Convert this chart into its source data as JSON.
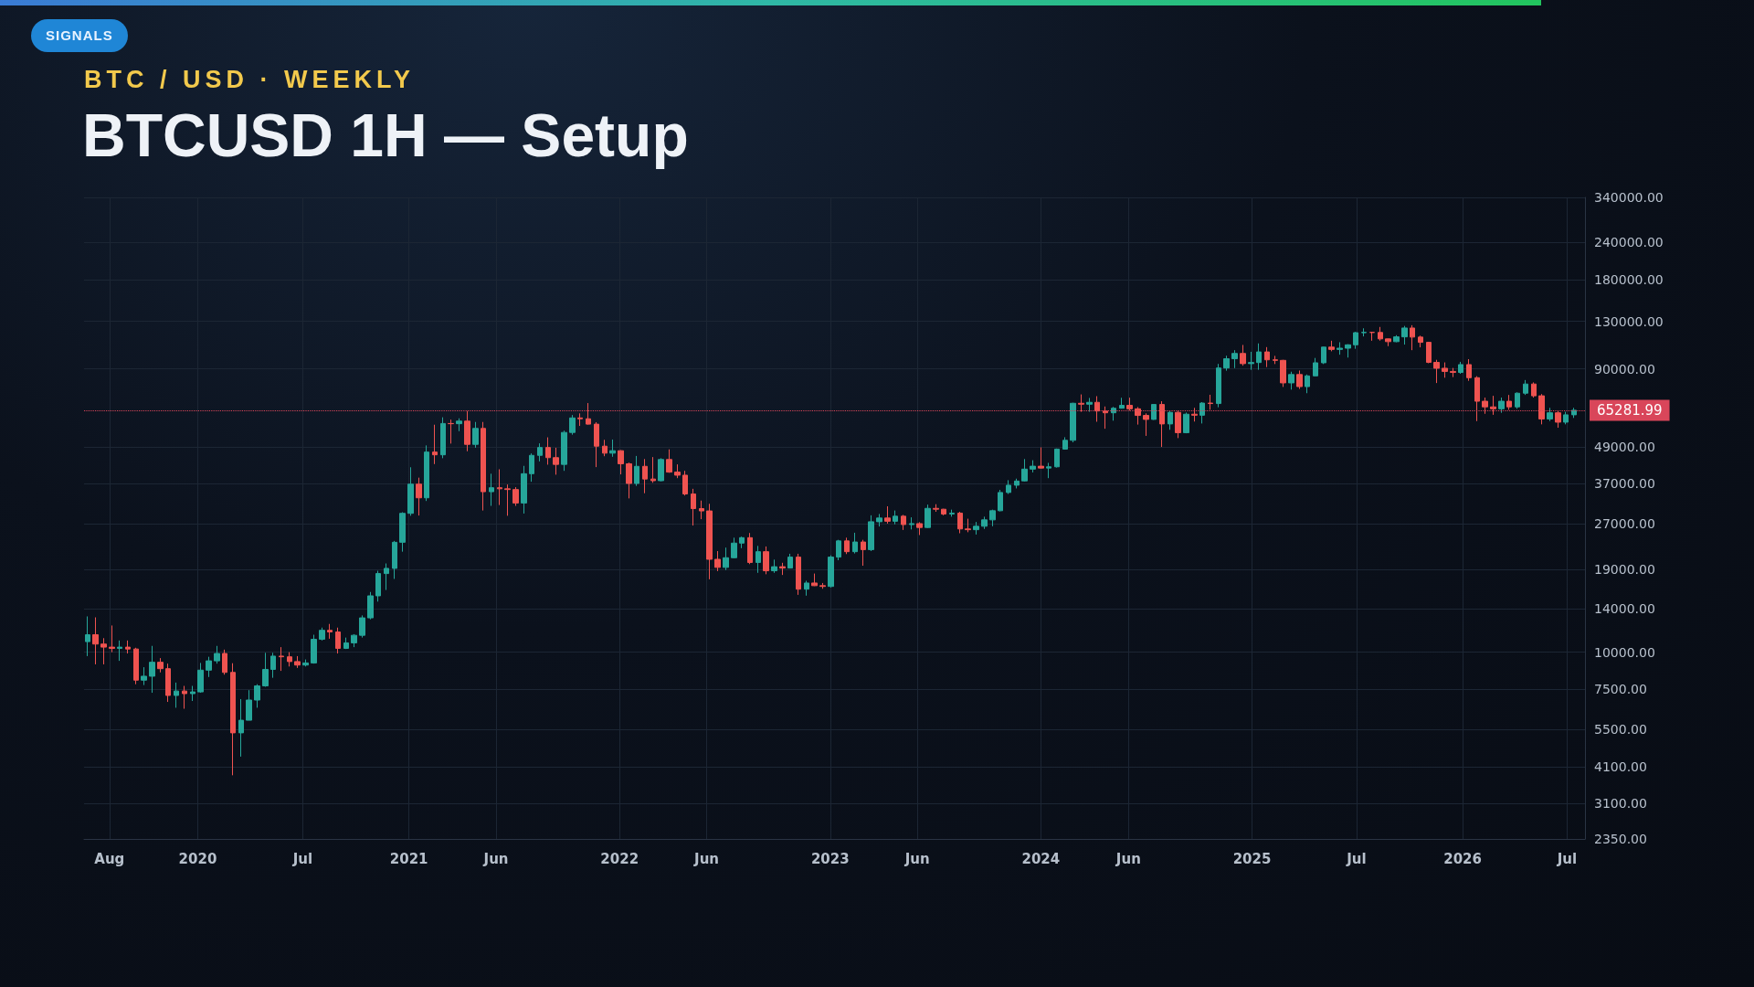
{
  "chart_data": {
    "type": "candlestick",
    "title": "BTCUSD 1H — Setup",
    "subtitle": "BTC / USD · WEEKLY",
    "annotations": [
      "SIGNALS"
    ],
    "x": [
      "2019-06-24",
      "2019-07-08",
      "2019-07-22",
      "2019-08-05",
      "2019-08-19",
      "2019-09-02",
      "2019-09-16",
      "2019-09-30",
      "2019-10-14",
      "2019-10-28",
      "2019-11-11",
      "2019-11-25",
      "2019-12-09",
      "2019-12-23",
      "2020-01-06",
      "2020-01-20",
      "2020-02-03",
      "2020-02-17",
      "2020-03-02",
      "2020-03-16",
      "2020-03-30",
      "2020-04-13",
      "2020-04-27",
      "2020-05-11",
      "2020-05-25",
      "2020-06-08",
      "2020-06-22",
      "2020-07-06",
      "2020-07-20",
      "2020-08-03",
      "2020-08-17",
      "2020-08-31",
      "2020-09-14",
      "2020-09-28",
      "2020-10-12",
      "2020-10-26",
      "2020-11-09",
      "2020-11-23",
      "2020-12-07",
      "2020-12-21",
      "2021-01-04",
      "2021-01-18",
      "2021-02-01",
      "2021-02-15",
      "2021-03-01",
      "2021-03-15",
      "2021-03-29",
      "2021-04-12",
      "2021-04-26",
      "2021-05-10",
      "2021-05-24",
      "2021-06-07",
      "2021-06-21",
      "2021-07-05",
      "2021-07-19",
      "2021-08-02",
      "2021-08-16",
      "2021-08-30",
      "2021-09-13",
      "2021-09-27",
      "2021-10-11",
      "2021-10-25",
      "2021-11-08",
      "2021-11-22",
      "2021-12-06",
      "2021-12-20",
      "2022-01-03",
      "2022-01-17",
      "2022-01-31",
      "2022-02-14",
      "2022-02-28",
      "2022-03-14",
      "2022-03-28",
      "2022-04-11",
      "2022-04-25",
      "2022-05-09",
      "2022-05-23",
      "2022-06-06",
      "2022-06-20",
      "2022-07-04",
      "2022-07-18",
      "2022-08-01",
      "2022-08-15",
      "2022-08-29",
      "2022-09-12",
      "2022-09-26",
      "2022-10-10",
      "2022-10-24",
      "2022-11-07",
      "2022-11-21",
      "2022-12-05",
      "2022-12-19",
      "2023-01-02",
      "2023-01-16",
      "2023-01-30",
      "2023-02-13",
      "2023-02-27",
      "2023-03-13",
      "2023-03-27",
      "2023-04-10",
      "2023-04-24",
      "2023-05-08",
      "2023-05-22",
      "2023-06-05",
      "2023-06-19",
      "2023-07-03",
      "2023-07-17",
      "2023-07-31",
      "2023-08-14",
      "2023-08-28",
      "2023-09-11",
      "2023-09-25",
      "2023-10-09",
      "2023-10-23",
      "2023-11-06",
      "2023-11-20",
      "2023-12-04",
      "2023-12-18",
      "2024-01-01",
      "2024-01-15",
      "2024-01-29",
      "2024-02-12",
      "2024-02-26",
      "2024-03-11",
      "2024-03-25",
      "2024-04-08",
      "2024-04-22",
      "2024-05-06",
      "2024-05-20",
      "2024-06-03",
      "2024-06-17",
      "2024-07-01",
      "2024-07-15",
      "2024-07-29",
      "2024-08-12",
      "2024-08-26",
      "2024-09-09",
      "2024-09-23",
      "2024-10-07",
      "2024-10-21",
      "2024-11-04",
      "2024-11-18",
      "2024-12-02",
      "2024-12-16",
      "2024-12-30",
      "2025-01-13",
      "2025-01-27",
      "2025-02-10",
      "2025-02-24",
      "2025-03-10",
      "2025-03-24",
      "2025-04-07",
      "2025-04-21",
      "2025-05-05",
      "2025-05-19",
      "2025-06-02",
      "2025-06-16",
      "2025-06-30",
      "2025-07-14",
      "2025-07-28",
      "2025-08-11",
      "2025-08-25",
      "2025-09-08",
      "2025-09-22",
      "2025-10-06",
      "2025-10-20",
      "2025-11-03",
      "2025-11-17",
      "2025-12-01",
      "2025-12-15",
      "2025-12-29",
      "2026-01-12",
      "2026-01-26",
      "2026-02-09",
      "2026-02-23",
      "2026-03-09",
      "2026-03-23",
      "2026-04-06",
      "2026-04-20",
      "2026-05-04",
      "2026-05-18",
      "2026-06-01",
      "2026-06-15",
      "2026-06-29",
      "2026-07-13"
    ],
    "ohlc": [
      [
        10850,
        13200,
        9700,
        11450
      ],
      [
        11450,
        13100,
        9100,
        10650
      ],
      [
        10650,
        11150,
        9100,
        10400
      ],
      [
        10400,
        12300,
        10000,
        10300
      ],
      [
        10300,
        10950,
        9350,
        10400
      ],
      [
        10400,
        10950,
        9900,
        10250
      ],
      [
        10250,
        10350,
        7800,
        8050
      ],
      [
        8050,
        8900,
        7750,
        8300
      ],
      [
        8300,
        10500,
        7300,
        9250
      ],
      [
        9250,
        9550,
        8550,
        8800
      ],
      [
        8800,
        9150,
        6800,
        7150
      ],
      [
        7150,
        7900,
        6500,
        7400
      ],
      [
        7400,
        7700,
        6450,
        7250
      ],
      [
        7250,
        7700,
        6850,
        7350
      ],
      [
        7350,
        9200,
        7300,
        8700
      ],
      [
        8700,
        9650,
        8250,
        9350
      ],
      [
        9350,
        10500,
        9150,
        9900
      ],
      [
        9900,
        10200,
        8400,
        8550
      ],
      [
        8550,
        9180,
        3850,
        5350
      ],
      [
        5350,
        6950,
        4450,
        5900
      ],
      [
        5900,
        7450,
        5900,
        6900
      ],
      [
        6900,
        7800,
        6500,
        7700
      ],
      [
        7700,
        9950,
        7650,
        8750
      ],
      [
        8750,
        9950,
        8200,
        9700
      ],
      [
        9700,
        10400,
        8650,
        9650
      ],
      [
        9650,
        10000,
        8950,
        9300
      ],
      [
        9300,
        9700,
        8850,
        9050
      ],
      [
        9050,
        9450,
        8950,
        9200
      ],
      [
        9200,
        11450,
        9150,
        11050
      ],
      [
        11050,
        12100,
        10950,
        11850
      ],
      [
        11850,
        12450,
        11100,
        11700
      ],
      [
        11700,
        12100,
        9900,
        10300
      ],
      [
        10300,
        11200,
        10250,
        10750
      ],
      [
        10750,
        11500,
        10400,
        11400
      ],
      [
        11400,
        13300,
        11200,
        13050
      ],
      [
        13050,
        15950,
        12900,
        15480
      ],
      [
        15480,
        18800,
        14800,
        18400
      ],
      [
        18400,
        19900,
        16200,
        19150
      ],
      [
        19150,
        23700,
        17650,
        23450
      ],
      [
        23450,
        29600,
        21800,
        29350
      ],
      [
        29350,
        41950,
        28800,
        36800
      ],
      [
        36800,
        38700,
        28850,
        33100
      ],
      [
        33100,
        49700,
        32300,
        47200
      ],
      [
        47200,
        58350,
        43000,
        46200
      ],
      [
        46200,
        61800,
        45000,
        58900
      ],
      [
        58900,
        60700,
        50400,
        58800
      ],
      [
        58800,
        61300,
        55500,
        60000
      ],
      [
        60000,
        64900,
        47500,
        50100
      ],
      [
        50100,
        59600,
        48800,
        56700
      ],
      [
        56700,
        59600,
        30000,
        34700
      ],
      [
        34700,
        39900,
        31100,
        35800
      ],
      [
        35800,
        41300,
        31300,
        35500
      ],
      [
        35500,
        36700,
        28800,
        35300
      ],
      [
        35300,
        35950,
        31100,
        31800
      ],
      [
        31800,
        42400,
        29300,
        39900
      ],
      [
        39900,
        46700,
        37500,
        46000
      ],
      [
        46000,
        50500,
        43900,
        48900
      ],
      [
        48900,
        52900,
        42800,
        45200
      ],
      [
        45200,
        48800,
        39600,
        42900
      ],
      [
        42900,
        55700,
        40800,
        54950
      ],
      [
        54950,
        62900,
        54000,
        61500
      ],
      [
        61500,
        63700,
        57800,
        61100
      ],
      [
        61100,
        69000,
        58400,
        58600
      ],
      [
        58600,
        59500,
        42000,
        49400
      ],
      [
        49400,
        51900,
        45700,
        46800
      ],
      [
        46800,
        52000,
        45500,
        47700
      ],
      [
        47700,
        47900,
        39700,
        43100
      ],
      [
        43100,
        43500,
        32950,
        37000
      ],
      [
        37000,
        45800,
        36300,
        42250
      ],
      [
        42250,
        44700,
        34300,
        38300
      ],
      [
        38300,
        45400,
        37200,
        37800
      ],
      [
        37800,
        45000,
        37600,
        44550
      ],
      [
        44550,
        48200,
        40200,
        40400
      ],
      [
        40400,
        42900,
        38550,
        39450
      ],
      [
        39450,
        40800,
        33700,
        34100
      ],
      [
        34100,
        35500,
        26700,
        30450
      ],
      [
        30450,
        32400,
        28050,
        29900
      ],
      [
        29900,
        31600,
        17600,
        20550
      ],
      [
        20550,
        21900,
        18750,
        19300
      ],
      [
        19300,
        22500,
        18900,
        20800
      ],
      [
        20800,
        24300,
        20700,
        23300
      ],
      [
        23300,
        24500,
        22400,
        24300
      ],
      [
        24300,
        25200,
        19800,
        20050
      ],
      [
        20050,
        22800,
        18500,
        21800
      ],
      [
        21800,
        22700,
        18300,
        18800
      ],
      [
        18800,
        20500,
        18500,
        19400
      ],
      [
        19400,
        20000,
        18200,
        19200
      ],
      [
        19200,
        21450,
        19150,
        20900
      ],
      [
        20900,
        21450,
        15600,
        16300
      ],
      [
        16300,
        17400,
        15500,
        17100
      ],
      [
        17100,
        18400,
        16700,
        16750
      ],
      [
        16750,
        17100,
        16350,
        16650
      ],
      [
        16650,
        21200,
        16500,
        20900
      ],
      [
        20900,
        23900,
        20400,
        23700
      ],
      [
        23700,
        24300,
        21400,
        21800
      ],
      [
        21800,
        25250,
        21500,
        23500
      ],
      [
        23500,
        23900,
        19550,
        22150
      ],
      [
        22150,
        28900,
        21900,
        27500
      ],
      [
        27500,
        29200,
        26500,
        28300
      ],
      [
        28300,
        31000,
        27100,
        27600
      ],
      [
        27600,
        30000,
        26950,
        28700
      ],
      [
        28700,
        29000,
        25800,
        26900
      ],
      [
        26900,
        28450,
        25900,
        27100
      ],
      [
        27100,
        27400,
        24800,
        26300
      ],
      [
        26300,
        31400,
        26200,
        30500
      ],
      [
        30500,
        31500,
        29700,
        30300
      ],
      [
        30300,
        30400,
        28900,
        29200
      ],
      [
        29200,
        30200,
        28600,
        29400
      ],
      [
        29400,
        29700,
        25150,
        26000
      ],
      [
        26000,
        28150,
        25350,
        25850
      ],
      [
        25850,
        27450,
        24900,
        26550
      ],
      [
        26550,
        28600,
        26000,
        27900
      ],
      [
        27900,
        30200,
        26550,
        29950
      ],
      [
        29950,
        35200,
        29800,
        34500
      ],
      [
        34500,
        37950,
        34100,
        36500
      ],
      [
        36500,
        38400,
        35600,
        37700
      ],
      [
        37750,
        44700,
        37600,
        41350
      ],
      [
        41350,
        44300,
        40300,
        42300
      ],
      [
        42300,
        48950,
        41500,
        41700
      ],
      [
        41700,
        43400,
        38550,
        42100
      ],
      [
        42100,
        48500,
        41850,
        48300
      ],
      [
        48300,
        52950,
        48100,
        51700
      ],
      [
        51700,
        69200,
        50900,
        68900
      ],
      [
        68900,
        73800,
        64500,
        68400
      ],
      [
        68400,
        71800,
        64500,
        69400
      ],
      [
        69400,
        72800,
        59700,
        64900
      ],
      [
        64900,
        67200,
        56550,
        64000
      ],
      [
        64000,
        67000,
        60200,
        66300
      ],
      [
        66300,
        71900,
        66100,
        67800
      ],
      [
        67800,
        71950,
        65100,
        66000
      ],
      [
        66000,
        66900,
        58400,
        62700
      ],
      [
        62700,
        63700,
        53500,
        60800
      ],
      [
        60800,
        68400,
        60600,
        68250
      ],
      [
        68250,
        70000,
        49100,
        58700
      ],
      [
        58700,
        65000,
        56100,
        64200
      ],
      [
        64200,
        65000,
        52600,
        54850
      ],
      [
        54850,
        64100,
        54600,
        63300
      ],
      [
        63300,
        66500,
        59800,
        62800
      ],
      [
        62800,
        69500,
        58900,
        69000
      ],
      [
        69000,
        73600,
        65500,
        68750
      ],
      [
        68750,
        93500,
        66800,
        90600
      ],
      [
        90600,
        99600,
        88700,
        97300
      ],
      [
        97300,
        104000,
        90500,
        101400
      ],
      [
        101400,
        108300,
        92200,
        93700
      ],
      [
        93700,
        102700,
        89300,
        94500
      ],
      [
        94500,
        109600,
        89300,
        102600
      ],
      [
        102600,
        106500,
        91200,
        96500
      ],
      [
        96500,
        99500,
        93400,
        96100
      ],
      [
        96100,
        96500,
        78200,
        80700
      ],
      [
        80700,
        88000,
        76600,
        86100
      ],
      [
        86100,
        88800,
        77000,
        78400
      ],
      [
        78400,
        86100,
        74500,
        85200
      ],
      [
        85200,
        97900,
        85100,
        94300
      ],
      [
        94300,
        106800,
        93400,
        106500
      ],
      [
        106500,
        111900,
        103100,
        104600
      ],
      [
        104600,
        110600,
        100400,
        105600
      ],
      [
        105600,
        108900,
        98200,
        108400
      ],
      [
        108400,
        119800,
        105100,
        119100
      ],
      [
        119100,
        123200,
        115700,
        119400
      ],
      [
        119400,
        119900,
        111900,
        119300
      ],
      [
        119300,
        124500,
        112000,
        113500
      ],
      [
        113500,
        113800,
        107300,
        111100
      ],
      [
        111100,
        116800,
        110600,
        115300
      ],
      [
        115300,
        125500,
        108600,
        123500
      ],
      [
        123500,
        126200,
        104000,
        115100
      ],
      [
        115100,
        116400,
        106300,
        110500
      ],
      [
        110500,
        111000,
        94000,
        94600
      ],
      [
        94600,
        96500,
        80600,
        90400
      ],
      [
        90400,
        94600,
        84000,
        88200
      ],
      [
        88200,
        90600,
        84400,
        87500
      ],
      [
        87500,
        95000,
        86600,
        93000
      ],
      [
        93000,
        97000,
        82000,
        84000
      ],
      [
        84000,
        85000,
        60000,
        70000
      ],
      [
        70000,
        72000,
        63500,
        67000
      ],
      [
        67000,
        73000,
        63000,
        66000
      ],
      [
        66000,
        72000,
        64000,
        70000
      ],
      [
        70000,
        73500,
        65500,
        67000
      ],
      [
        67000,
        75000,
        66000,
        74500
      ],
      [
        74500,
        82500,
        73500,
        80000
      ],
      [
        80000,
        81000,
        72000,
        73000
      ],
      [
        73000,
        74000,
        58500,
        61000
      ],
      [
        61000,
        66500,
        60000,
        64000
      ],
      [
        64000,
        65000,
        57000,
        59500
      ],
      [
        59500,
        64500,
        58500,
        63000
      ],
      [
        63000,
        66500,
        61500,
        65281.99
      ]
    ],
    "xlim": [
      "2019-06-18",
      "2026-08-01"
    ],
    "xticks": [
      {
        "value": "2019-08-01",
        "label": "Aug"
      },
      {
        "value": "2020-01-01",
        "label": "2020"
      },
      {
        "value": "2020-07-01",
        "label": "Jul"
      },
      {
        "value": "2021-01-01",
        "label": "2021"
      },
      {
        "value": "2021-06-01",
        "label": "Jun"
      },
      {
        "value": "2022-01-01",
        "label": "2022"
      },
      {
        "value": "2022-06-01",
        "label": "Jun"
      },
      {
        "value": "2023-01-01",
        "label": "2023"
      },
      {
        "value": "2023-06-01",
        "label": "Jun"
      },
      {
        "value": "2024-01-01",
        "label": "2024"
      },
      {
        "value": "2024-06-01",
        "label": "Jun"
      },
      {
        "value": "2025-01-01",
        "label": "2025"
      },
      {
        "value": "2025-07-01",
        "label": "Jul"
      },
      {
        "value": "2026-01-01",
        "label": "2026"
      },
      {
        "value": "2026-07-01",
        "label": "Jul"
      }
    ],
    "ylim": [
      2350,
      340000
    ],
    "yticks": [
      {
        "value": 2350,
        "label": "2350.00"
      },
      {
        "value": 3100,
        "label": "3100.00"
      },
      {
        "value": 4100,
        "label": "4100.00"
      },
      {
        "value": 5500,
        "label": "5500.00"
      },
      {
        "value": 7500,
        "label": "7500.00"
      },
      {
        "value": 10000,
        "label": "10000.00"
      },
      {
        "value": 14000,
        "label": "14000.00"
      },
      {
        "value": 19000,
        "label": "19000.00"
      },
      {
        "value": 27000,
        "label": "27000.00"
      },
      {
        "value": 37000,
        "label": "37000.00"
      },
      {
        "value": 49000,
        "label": "49000.00"
      },
      {
        "value": 90000,
        "label": "90000.00"
      },
      {
        "value": 130000,
        "label": "130000.00"
      },
      {
        "value": 180000,
        "label": "180000.00"
      },
      {
        "value": 240000,
        "label": "240000.00"
      },
      {
        "value": 340000,
        "label": "340000.00"
      }
    ],
    "log": "y",
    "grid": true,
    "ref_lines": [
      {
        "axis": "y",
        "value": 65281.99,
        "label": "65281.99",
        "color": "#d9465a",
        "line_style": "dotted"
      }
    ]
  }
}
